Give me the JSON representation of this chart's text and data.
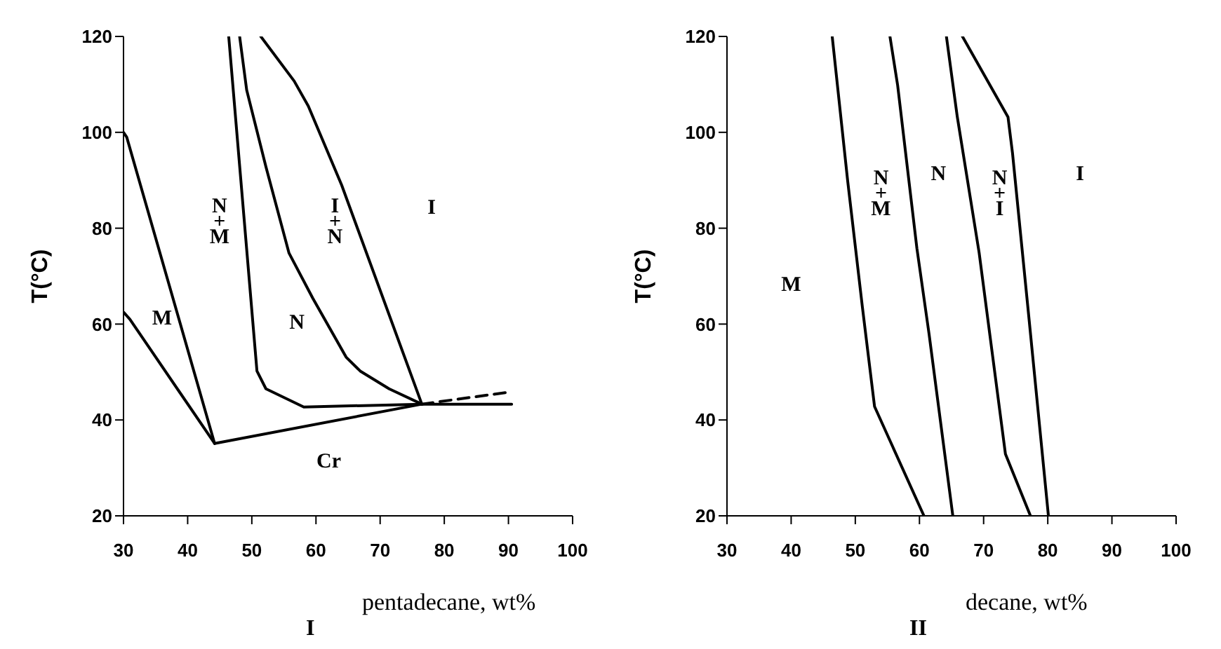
{
  "chart_data": [
    {
      "type": "line",
      "title": "I",
      "xlabel": "pentadecane, wt%",
      "ylabel": "T(°C)",
      "xlim": [
        30,
        100
      ],
      "ylim": [
        20,
        120
      ],
      "xticks": [
        30,
        40,
        50,
        60,
        70,
        80,
        90,
        100
      ],
      "yticks": [
        20,
        40,
        60,
        80,
        100,
        120
      ],
      "marker": "none",
      "series": [
        {
          "color": "#000000",
          "x": [
            30,
            31,
            44.2
          ],
          "values": [
            62.5,
            61,
            35.1
          ]
        },
        {
          "color": "#000000",
          "x": [
            30,
            30.5,
            44.2
          ],
          "values": [
            100,
            99,
            35.1
          ]
        },
        {
          "color": "#000000",
          "x": [
            44.2,
            76.5,
            90.5
          ],
          "values": [
            35.1,
            43.3,
            43.3
          ]
        },
        {
          "color": "#000000",
          "x": [
            46.4,
            50.8,
            52.2,
            58.1,
            76.5
          ],
          "values": [
            120,
            50.2,
            46.5,
            42.7,
            43.3
          ]
        },
        {
          "color": "#000000",
          "x": [
            48.1,
            49.2,
            52.2,
            55.8,
            59.5,
            64.7,
            66.9,
            71.4,
            76.5
          ],
          "values": [
            120,
            108.8,
            92.8,
            74.8,
            65.4,
            53.1,
            50.2,
            46.5,
            43.3
          ]
        },
        {
          "color": "#000000",
          "x": [
            51.4,
            56.6,
            58.8,
            64,
            76.5
          ],
          "values": [
            120,
            110.7,
            105.5,
            89,
            43.3
          ]
        },
        {
          "color": "#000000",
          "line_style": "dashed",
          "x": [
            76.5,
            89.5
          ],
          "values": [
            43.3,
            45.7
          ]
        }
      ],
      "annotations": [
        "M",
        "N\n+\nM",
        "N",
        "I\n+\nN",
        "I",
        "Cr"
      ]
    },
    {
      "type": "line",
      "title": "II",
      "xlabel": "decane, wt%",
      "ylabel": "T(°C)",
      "xlim": [
        30,
        100
      ],
      "ylim": [
        20,
        120
      ],
      "xticks": [
        30,
        40,
        50,
        60,
        70,
        80,
        90,
        100
      ],
      "yticks": [
        20,
        40,
        60,
        80,
        100,
        120
      ],
      "marker": "none",
      "series": [
        {
          "color": "#000000",
          "x": [
            46.4,
            48.8,
            51.1,
            53,
            60.7
          ],
          "values": [
            120,
            90,
            63.6,
            42.8,
            20
          ]
        },
        {
          "color": "#000000",
          "x": [
            55.4,
            56.6,
            59.6,
            61.5,
            65.2
          ],
          "values": [
            120,
            109.8,
            75.8,
            57.9,
            20
          ]
        },
        {
          "color": "#000000",
          "x": [
            64.2,
            65.9,
            69.3,
            73.4,
            77.3
          ],
          "values": [
            120,
            103.2,
            74.9,
            32.9,
            20
          ]
        },
        {
          "color": "#000000",
          "x": [
            66.7,
            73.8,
            74.5,
            77.1,
            80.1
          ],
          "values": [
            120,
            103.2,
            95.7,
            60.8,
            20
          ]
        }
      ],
      "annotations": [
        "M",
        "N\n+\nM",
        "N",
        "N\n+\nI",
        "I"
      ]
    }
  ]
}
